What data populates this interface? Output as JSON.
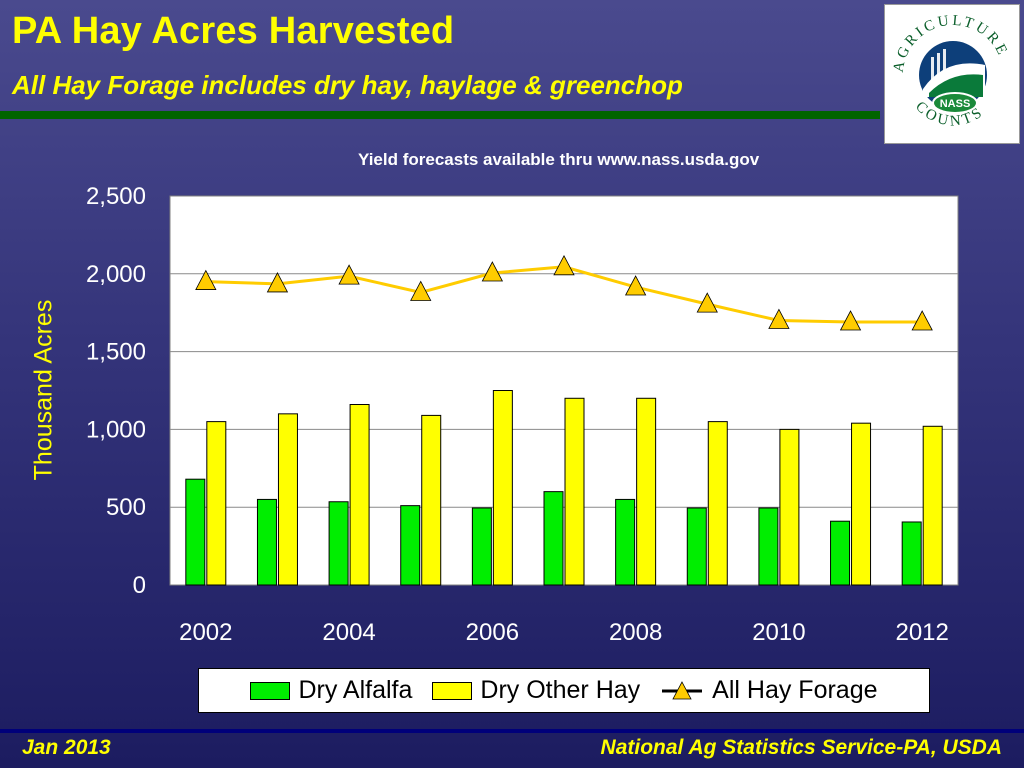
{
  "header": {
    "title": "PA Hay Acres Harvested",
    "subtitle": "All Hay Forage includes dry hay, haylage & greenchop"
  },
  "logo": {
    "top_text": "AGRICULTURE",
    "bottom_text": "COUNTS",
    "badge": "NASS"
  },
  "note": "Yield forecasts available thru www.nass.usda.gov",
  "footer": {
    "date": "Jan 2013",
    "org": "National Ag Statistics Service-PA, USDA"
  },
  "colors": {
    "title": "#ffff00",
    "alfalfa": "#00ee00",
    "other_hay": "#ffff00",
    "forage_line": "#ffcc00",
    "plot_bg": "#ffffff"
  },
  "chart_data": {
    "type": "bar",
    "title": "",
    "xlabel": "",
    "ylabel": "Thousand Acres",
    "x": [
      2002,
      2003,
      2004,
      2005,
      2006,
      2007,
      2008,
      2009,
      2010,
      2011,
      2012
    ],
    "x_tick_labels": [
      "2002",
      "2004",
      "2006",
      "2008",
      "2010",
      "2012"
    ],
    "y_tick_labels": [
      "0",
      "500",
      "1,000",
      "1,500",
      "2,000",
      "2,500"
    ],
    "ylim": [
      0,
      2500
    ],
    "grid": true,
    "legend_position": "bottom",
    "series": [
      {
        "name": "Dry Alfalfa",
        "kind": "bar",
        "color": "#00ee00",
        "values": [
          680,
          550,
          535,
          510,
          495,
          600,
          550,
          495,
          495,
          410,
          405
        ]
      },
      {
        "name": "Dry Other Hay",
        "kind": "bar",
        "color": "#ffff00",
        "values": [
          1050,
          1100,
          1160,
          1090,
          1250,
          1200,
          1200,
          1050,
          1000,
          1040,
          1020
        ]
      },
      {
        "name": "All Hay Forage",
        "kind": "line",
        "marker": "triangle",
        "color": "#ffcc00",
        "values": [
          1950,
          1935,
          1985,
          1880,
          2005,
          2045,
          1915,
          1805,
          1700,
          1690,
          1690
        ]
      }
    ]
  }
}
